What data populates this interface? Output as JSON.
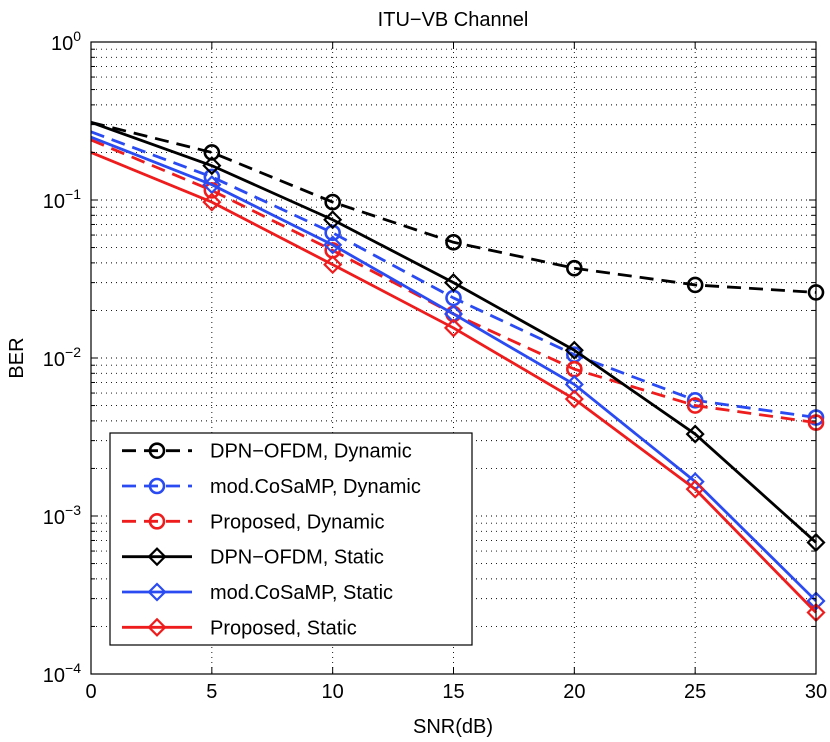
{
  "chart_data": {
    "type": "line",
    "title": "ITU−VB Channel",
    "xlabel": "SNR(dB)",
    "ylabel": "BER",
    "xscale": "linear",
    "yscale": "log",
    "xlim": [
      0,
      30
    ],
    "ylim": [
      0.0001,
      1
    ],
    "grid": true,
    "legend_position": "bottom-left",
    "x_ticks": [
      {
        "value": 0,
        "label": "0"
      },
      {
        "value": 5,
        "label": "5"
      },
      {
        "value": 10,
        "label": "10"
      },
      {
        "value": 15,
        "label": "15"
      },
      {
        "value": 20,
        "label": "20"
      },
      {
        "value": 25,
        "label": "25"
      },
      {
        "value": 30,
        "label": "30"
      }
    ],
    "y_ticks": [
      {
        "value": 1,
        "base": "10",
        "exp": "0"
      },
      {
        "value": 0.1,
        "base": "10",
        "exp": "−1"
      },
      {
        "value": 0.01,
        "base": "10",
        "exp": "−2"
      },
      {
        "value": 0.001,
        "base": "10",
        "exp": "−3"
      },
      {
        "value": 0.0001,
        "base": "10",
        "exp": "−4"
      }
    ],
    "series": [
      {
        "name": "DPN−OFDM, Dynamic",
        "color": "#000000",
        "dash": "dashed",
        "marker": "circle",
        "x": [
          0,
          5,
          10,
          15,
          20,
          25,
          30
        ],
        "y": [
          0.31,
          0.2,
          0.097,
          0.054,
          0.037,
          0.029,
          0.026
        ],
        "marker_x": [
          5,
          10,
          15,
          20,
          25,
          30
        ]
      },
      {
        "name": "mod.CoSaMP, Dynamic",
        "color": "#2b4bf2",
        "dash": "dashed",
        "marker": "circle",
        "x": [
          0,
          5,
          10,
          15,
          20,
          25,
          30
        ],
        "y": [
          0.27,
          0.14,
          0.062,
          0.024,
          0.0105,
          0.0054,
          0.0042
        ],
        "marker_x": [
          5,
          10,
          15,
          20,
          25,
          30
        ]
      },
      {
        "name": "Proposed, Dynamic",
        "color": "#ee1c1c",
        "dash": "dashed",
        "marker": "circle",
        "x": [
          0,
          5,
          10,
          15,
          20,
          25,
          30
        ],
        "y": [
          0.24,
          0.115,
          0.048,
          0.019,
          0.0085,
          0.005,
          0.0039
        ],
        "marker_x": [
          5,
          10,
          15,
          20,
          25,
          30
        ]
      },
      {
        "name": "DPN−OFDM, Static",
        "color": "#000000",
        "dash": "solid",
        "marker": "diamond",
        "x": [
          0,
          5,
          10,
          15,
          20,
          25,
          30
        ],
        "y": [
          0.31,
          0.165,
          0.075,
          0.03,
          0.0112,
          0.0033,
          0.00068
        ],
        "marker_x": [
          5,
          10,
          15,
          20,
          25,
          30
        ]
      },
      {
        "name": "mod.CoSaMP, Static",
        "color": "#2b4bf2",
        "dash": "solid",
        "marker": "diamond",
        "x": [
          0,
          5,
          10,
          15,
          20,
          25,
          30
        ],
        "y": [
          0.25,
          0.125,
          0.052,
          0.019,
          0.0068,
          0.00165,
          0.00029
        ],
        "marker_x": [
          5,
          10,
          15,
          20,
          25,
          30
        ]
      },
      {
        "name": "Proposed, Static",
        "color": "#ee1c1c",
        "dash": "solid",
        "marker": "diamond",
        "x": [
          0,
          5,
          10,
          15,
          20,
          25,
          30
        ],
        "y": [
          0.2,
          0.097,
          0.039,
          0.0155,
          0.0055,
          0.00148,
          0.000245
        ],
        "marker_x": [
          5,
          10,
          15,
          20,
          25,
          30
        ]
      }
    ]
  }
}
